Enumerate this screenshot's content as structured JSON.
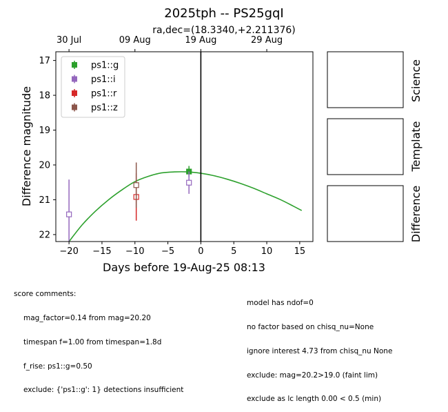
{
  "title": "2025tph -- PS25gqI",
  "subtitle": "ra,dec=(18.3340,+2.211376)",
  "panels": [
    "Science",
    "Template",
    "Difference"
  ],
  "colors": {
    "ps1::g": "#2ca02c",
    "ps1::i": "#9467bd",
    "ps1::r": "#d62728",
    "ps1::z": "#8c564b",
    "model": "#2ca02c",
    "reference_line": "#000000"
  },
  "chart_data": {
    "type": "scatter",
    "title": "2025tph -- PS25gqI",
    "subtitle": "ra,dec=(18.3340,+2.211376)",
    "xlabel": "Days before 19-Aug-25 08:13",
    "ylabel": "Difference magnitude",
    "xlim": [
      -22,
      17
    ],
    "ylim": [
      22.2,
      16.75
    ],
    "y_inverted": true,
    "grid": false,
    "legend_position": "top-left",
    "xticks": [
      -20,
      -15,
      -10,
      -5,
      0,
      5,
      10,
      15
    ],
    "xtick_labels": [
      "−20",
      "−15",
      "−10",
      "−5",
      "0",
      "5",
      "10",
      "15"
    ],
    "yticks": [
      17,
      18,
      19,
      20,
      21,
      22
    ],
    "top_axis": {
      "ticks": [
        -20,
        -10,
        0,
        10
      ],
      "labels": [
        "30 Jul",
        "09 Aug",
        "19 Aug",
        "29 Aug"
      ]
    },
    "vline_x": 0,
    "series": [
      {
        "name": "ps1::g",
        "marker": "filled-square",
        "points": [
          {
            "x": -1.8,
            "y": 20.19,
            "yerr": 0.16
          }
        ]
      },
      {
        "name": "ps1::i",
        "marker": "open-square",
        "points": [
          {
            "x": -20.0,
            "y": 21.42,
            "yerr": 1.0
          },
          {
            "x": -1.8,
            "y": 20.51,
            "yerr": 0.32
          }
        ]
      },
      {
        "name": "ps1::r",
        "marker": "open-square",
        "points": [
          {
            "x": -9.8,
            "y": 20.92,
            "yerr": 0.68
          }
        ]
      },
      {
        "name": "ps1::z",
        "marker": "open-square",
        "points": [
          {
            "x": -9.8,
            "y": 20.58,
            "yerr": 0.65
          }
        ]
      }
    ],
    "model_curve": {
      "band": "ps1::g",
      "points": [
        [
          -20,
          22.2
        ],
        [
          -18,
          21.72
        ],
        [
          -16,
          21.33
        ],
        [
          -14,
          21.0
        ],
        [
          -12,
          20.72
        ],
        [
          -10,
          20.48
        ],
        [
          -8,
          20.33
        ],
        [
          -6,
          20.23
        ],
        [
          -4,
          20.2
        ],
        [
          -2,
          20.2
        ],
        [
          0,
          20.24
        ],
        [
          2,
          20.31
        ],
        [
          4,
          20.41
        ],
        [
          6,
          20.53
        ],
        [
          8,
          20.67
        ],
        [
          10,
          20.83
        ],
        [
          12,
          20.99
        ],
        [
          14,
          21.18
        ],
        [
          15.3,
          21.31
        ]
      ]
    }
  },
  "comments_left": {
    "heading": "score comments:",
    "lines": [
      "mag_factor=0.14 from mag=20.20",
      "timespan f=1.00 from timespan=1.8d",
      "f_rise: ps1::g=0.50",
      "exclude: {'ps1::g': 1} detections insufficient"
    ]
  },
  "comments_right": {
    "lines": [
      "model has ndof=0",
      "no factor based on chisq_nu=None",
      "ignore interest 4.73 from chisq_nu None",
      "exclude: mag=20.2>19.0 (faint lim)",
      "exclude as lc length 0.00 < 0.5 (min)"
    ]
  }
}
